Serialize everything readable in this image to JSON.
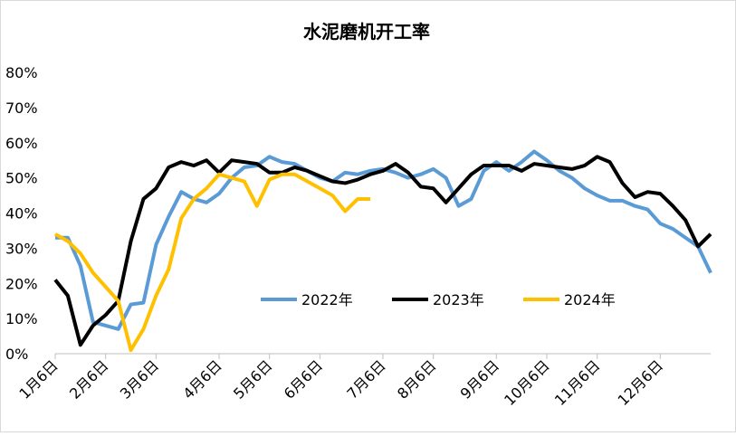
{
  "chart_data": {
    "type": "line",
    "title": "水泥磨机开工率",
    "categories": [
      "1月6日",
      null,
      null,
      null,
      "2月6日",
      null,
      null,
      null,
      "3月6日",
      null,
      null,
      null,
      null,
      "4月6日",
      null,
      null,
      null,
      "5月6日",
      null,
      null,
      null,
      "6月6日",
      null,
      null,
      null,
      null,
      "7月6日",
      null,
      null,
      null,
      "8月6日",
      null,
      null,
      null,
      null,
      "9月6日",
      null,
      null,
      null,
      "10月6日",
      null,
      null,
      null,
      "11月6日",
      null,
      null,
      null,
      null,
      "12月6日",
      null,
      null,
      null,
      null
    ],
    "series": [
      {
        "name": "2022年",
        "color": "#5b9bd5",
        "values": [
          33,
          33,
          25,
          9,
          8,
          7,
          14,
          14.5,
          31,
          39,
          46,
          44,
          43,
          45.5,
          50,
          53,
          53.5,
          56,
          54.5,
          54,
          52,
          50,
          49,
          51.5,
          51,
          52,
          52.5,
          51.5,
          50,
          51,
          52.5,
          50,
          42,
          44,
          52,
          54.5,
          52,
          54.5,
          57.5,
          55,
          52,
          50,
          47,
          45,
          43.5,
          43.5,
          42,
          41,
          37,
          35.5,
          33,
          30.5,
          23
        ]
      },
      {
        "name": "2023年",
        "color": "#000000",
        "values": [
          21,
          16.5,
          2.5,
          8,
          11,
          15,
          32,
          44,
          47,
          53,
          54.5,
          53.5,
          55,
          51.5,
          55,
          54.5,
          54,
          51.5,
          51.5,
          53,
          52,
          50.5,
          49,
          48.5,
          49.5,
          51,
          52,
          54,
          51.5,
          47.5,
          47,
          43,
          47,
          51,
          53.5,
          53.5,
          53.5,
          52,
          54,
          53.5,
          53,
          52.5,
          53.5,
          56,
          54.5,
          48.5,
          44.5,
          46,
          45.5,
          42,
          38,
          30.5,
          34
        ]
      },
      {
        "name": "2024年",
        "color": "#ffc000",
        "values": [
          34,
          32,
          28.5,
          23,
          19,
          15,
          1,
          7,
          16.5,
          24,
          38.5,
          44,
          47,
          51,
          50,
          49,
          42,
          49.5,
          51,
          51,
          49,
          47,
          45,
          40.5,
          44,
          44,
          null,
          null,
          null,
          null,
          null,
          null,
          null,
          null,
          null,
          null,
          null,
          null,
          null,
          null,
          null,
          null,
          null,
          null,
          null,
          null,
          null,
          null,
          null,
          null,
          null,
          null,
          null
        ]
      }
    ],
    "ylim": [
      0,
      80
    ],
    "yticks": [
      {
        "value": 0,
        "label": "0%"
      },
      {
        "value": 10,
        "label": "10%"
      },
      {
        "value": 20,
        "label": "20%"
      },
      {
        "value": 30,
        "label": "30%"
      },
      {
        "value": 40,
        "label": "40%"
      },
      {
        "value": 50,
        "label": "50%"
      },
      {
        "value": 60,
        "label": "60%"
      },
      {
        "value": 70,
        "label": "70%"
      },
      {
        "value": 80,
        "label": "80%"
      }
    ],
    "grid": false
  }
}
